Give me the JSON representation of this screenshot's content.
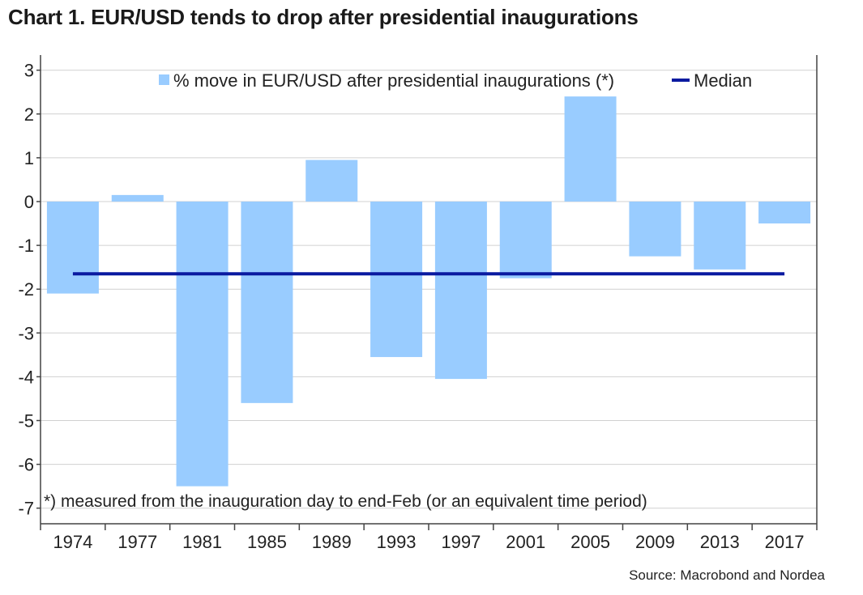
{
  "chart_data": {
    "type": "bar",
    "title": "Chart 1. EUR/USD tends to drop after presidential inaugurations",
    "categories": [
      "1974",
      "1977",
      "1981",
      "1985",
      "1989",
      "1993",
      "1997",
      "2001",
      "2005",
      "2009",
      "2013",
      "2017"
    ],
    "series": [
      {
        "name": "% move in EUR/USD after presidential inaugurations (*)",
        "type": "bar",
        "color": "#99ccff",
        "values": [
          -2.1,
          0.15,
          -6.5,
          -4.6,
          0.95,
          -3.55,
          -4.05,
          -1.75,
          2.4,
          -1.25,
          -1.55,
          -0.5
        ]
      },
      {
        "name": "Median",
        "type": "line",
        "color": "#0a1aa0",
        "value": -1.65
      }
    ],
    "ylim": [
      -7.2,
      3.3
    ],
    "yticks": [
      "3",
      "2",
      "1",
      "0",
      "-1",
      "-2",
      "-3",
      "-4",
      "-5",
      "-6",
      "-7"
    ],
    "grid": true,
    "legend_position": "top-center",
    "footnote": "*) measured from the inauguration day to end-Feb (or an equivalent time period)",
    "source": "Source: Macrobond and Nordea",
    "xlabel": "",
    "ylabel": ""
  }
}
